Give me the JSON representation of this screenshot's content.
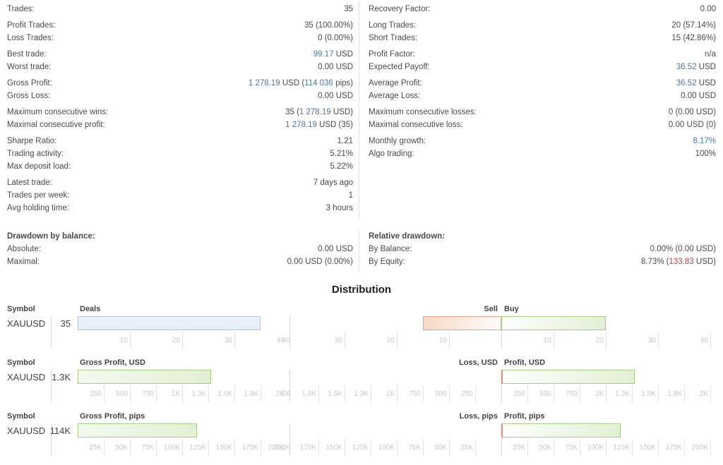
{
  "colors": {
    "text": "#4a4a4a",
    "blue_value": "#4878ab",
    "red_value": "#c53e33",
    "axis_label": "#c8c8c8",
    "grid_line": "#e2e2e2",
    "divider": "#dddddd",
    "deals_bar_border": "#b1c6e0",
    "profit_bar_border": "#a5ce87",
    "loss_bar_border": "#eaa28c"
  },
  "stats": {
    "left": [
      [
        {
          "label": "Trades:",
          "value": [
            {
              "t": "35"
            }
          ]
        }
      ],
      [
        {
          "label": "Profit Trades:",
          "value": [
            {
              "t": "35 (100.00%)"
            }
          ]
        },
        {
          "label": "Loss Trades:",
          "value": [
            {
              "t": "0 (0.00%)"
            }
          ]
        }
      ],
      [
        {
          "label": "Best trade:",
          "value": [
            {
              "t": "99.17",
              "c": "blue"
            },
            {
              "t": " USD"
            }
          ]
        },
        {
          "label": "Worst trade:",
          "value": [
            {
              "t": "0.00 USD"
            }
          ]
        }
      ],
      [
        {
          "label": "Gross Profit:",
          "value": [
            {
              "t": "1 278.19",
              "c": "blue"
            },
            {
              "t": " USD ("
            },
            {
              "t": "114 036",
              "c": "blue"
            },
            {
              "t": " pips)"
            }
          ]
        },
        {
          "label": "Gross Loss:",
          "value": [
            {
              "t": "0.00 USD"
            }
          ]
        }
      ],
      [
        {
          "label": "Maximum consecutive wins:",
          "value": [
            {
              "t": "35 ("
            },
            {
              "t": "1 278.19",
              "c": "blue"
            },
            {
              "t": " USD)"
            }
          ]
        },
        {
          "label": "Maximal consecutive profit:",
          "value": [
            {
              "t": "1 278.19",
              "c": "blue"
            },
            {
              "t": " USD (35)"
            }
          ]
        }
      ],
      [
        {
          "label": "Sharpe Ratio:",
          "value": [
            {
              "t": "1.21"
            }
          ]
        },
        {
          "label": "Trading activity:",
          "value": [
            {
              "t": "5.21%"
            }
          ]
        },
        {
          "label": "Max deposit load:",
          "value": [
            {
              "t": "5.22%"
            }
          ]
        }
      ],
      [
        {
          "label": "Latest trade:",
          "value": [
            {
              "t": "7 days ago"
            }
          ]
        },
        {
          "label": "Trades per week:",
          "value": [
            {
              "t": "1"
            }
          ]
        },
        {
          "label": "Avg holding time:",
          "value": [
            {
              "t": "3 hours"
            }
          ]
        }
      ]
    ],
    "right": [
      [
        {
          "label": "Recovery Factor:",
          "value": [
            {
              "t": "0.00"
            }
          ]
        }
      ],
      [
        {
          "label": "Long Trades:",
          "value": [
            {
              "t": "20 (57.14%)"
            }
          ]
        },
        {
          "label": "Short Trades:",
          "value": [
            {
              "t": "15 (42.86%)"
            }
          ]
        }
      ],
      [
        {
          "label": "Profit Factor:",
          "value": [
            {
              "t": "n/a"
            }
          ]
        },
        {
          "label": "Expected Payoff:",
          "value": [
            {
              "t": "36.52",
              "c": "blue"
            },
            {
              "t": " USD"
            }
          ]
        }
      ],
      [
        {
          "label": "Average Profit:",
          "value": [
            {
              "t": "36.52",
              "c": "blue"
            },
            {
              "t": " USD"
            }
          ]
        },
        {
          "label": "Average Loss:",
          "value": [
            {
              "t": "0.00 USD"
            }
          ]
        }
      ],
      [
        {
          "label": "Maximum consecutive losses:",
          "value": [
            {
              "t": "0 (0.00 USD)"
            }
          ]
        },
        {
          "label": "Maximal consecutive loss:",
          "value": [
            {
              "t": "0.00 USD (0)"
            }
          ]
        }
      ],
      [
        {
          "label": "Monthly growth:",
          "value": [
            {
              "t": "8.17%",
              "c": "blue"
            }
          ]
        },
        {
          "label": "Algo trading:",
          "value": [
            {
              "t": "100%"
            }
          ]
        }
      ]
    ]
  },
  "drawdown": {
    "left": [
      [
        {
          "label": "Drawdown by balance:",
          "bold": true,
          "value": []
        },
        {
          "label": "Absolute:",
          "value": [
            {
              "t": "0.00 USD"
            }
          ]
        },
        {
          "label": "Maximal:",
          "value": [
            {
              "t": "0.00 USD (0.00%)"
            }
          ]
        }
      ]
    ],
    "right": [
      [
        {
          "label": "Relative drawdown:",
          "bold": true,
          "value": []
        },
        {
          "label": "By Balance:",
          "value": [
            {
              "t": "0.00% (0.00 USD)"
            }
          ]
        },
        {
          "label": "By Equity:",
          "value": [
            {
              "t": "8.73% ("
            },
            {
              "t": "133.83",
              "c": "red"
            },
            {
              "t": " USD)"
            }
          ]
        }
      ]
    ]
  },
  "distribution_title": "Distribution",
  "chart_data": [
    {
      "type": "bar",
      "symbol_header": "Symbol",
      "symbol": "XAUUSD",
      "value_label": "35",
      "left": {
        "header": "Deals",
        "max": 40,
        "value": 35,
        "style": "blue",
        "ticks": [
          {
            "l": "10",
            "v": 10
          },
          {
            "l": "20",
            "v": 20
          },
          {
            "l": "30",
            "v": 30
          },
          {
            "l": "40",
            "v": 40
          }
        ]
      },
      "right": {
        "neg_header": "Sell",
        "pos_header": "Buy",
        "max": 40,
        "neg_value": 15,
        "pos_value": 20,
        "ticks": [
          {
            "l": "10",
            "v": 10
          },
          {
            "l": "20",
            "v": 20
          },
          {
            "l": "30",
            "v": 30
          },
          {
            "l": "40",
            "v": 40
          }
        ]
      }
    },
    {
      "type": "bar",
      "symbol_header": "Symbol",
      "symbol": "XAUUSD",
      "value_label": "1.3K",
      "left": {
        "header": "Gross Profit, USD",
        "max": 2000,
        "value": 1278.19,
        "style": "green",
        "ticks": [
          {
            "l": "250",
            "v": 250
          },
          {
            "l": "500",
            "v": 500
          },
          {
            "l": "750",
            "v": 750
          },
          {
            "l": "1K",
            "v": 1000
          },
          {
            "l": "1.3K",
            "v": 1250
          },
          {
            "l": "1.5K",
            "v": 1500
          },
          {
            "l": "1.8K",
            "v": 1750
          },
          {
            "l": "2K",
            "v": 2000
          }
        ]
      },
      "right": {
        "neg_header": "Loss, USD",
        "pos_header": "Profit, USD",
        "max": 2000,
        "neg_value": 0,
        "pos_value": 1278.19,
        "ticks": [
          {
            "l": "250",
            "v": 250
          },
          {
            "l": "500",
            "v": 500
          },
          {
            "l": "750",
            "v": 750
          },
          {
            "l": "1K",
            "v": 1000
          },
          {
            "l": "1.3K",
            "v": 1250
          },
          {
            "l": "1.5K",
            "v": 1500
          },
          {
            "l": "1.8K",
            "v": 1750
          },
          {
            "l": "2K",
            "v": 2000
          }
        ]
      }
    },
    {
      "type": "bar",
      "symbol_header": "Symbol",
      "symbol": "XAUUSD",
      "value_label": "114K",
      "left": {
        "header": "Gross Profit, pips",
        "max": 200000,
        "value": 114036,
        "style": "green",
        "ticks": [
          {
            "l": "25K",
            "v": 25000
          },
          {
            "l": "50K",
            "v": 50000
          },
          {
            "l": "75K",
            "v": 75000
          },
          {
            "l": "100K",
            "v": 100000
          },
          {
            "l": "125K",
            "v": 125000
          },
          {
            "l": "150K",
            "v": 150000
          },
          {
            "l": "175K",
            "v": 175000
          },
          {
            "l": "200K",
            "v": 200000
          }
        ]
      },
      "right": {
        "neg_header": "Loss, pips",
        "pos_header": "Profit, pips",
        "max": 200000,
        "neg_value": 0,
        "pos_value": 114036,
        "ticks": [
          {
            "l": "25K",
            "v": 25000
          },
          {
            "l": "50K",
            "v": 50000
          },
          {
            "l": "75K",
            "v": 75000
          },
          {
            "l": "100K",
            "v": 100000
          },
          {
            "l": "125K",
            "v": 125000
          },
          {
            "l": "150K",
            "v": 150000
          },
          {
            "l": "175K",
            "v": 175000
          },
          {
            "l": "200K",
            "v": 200000
          }
        ]
      }
    }
  ]
}
